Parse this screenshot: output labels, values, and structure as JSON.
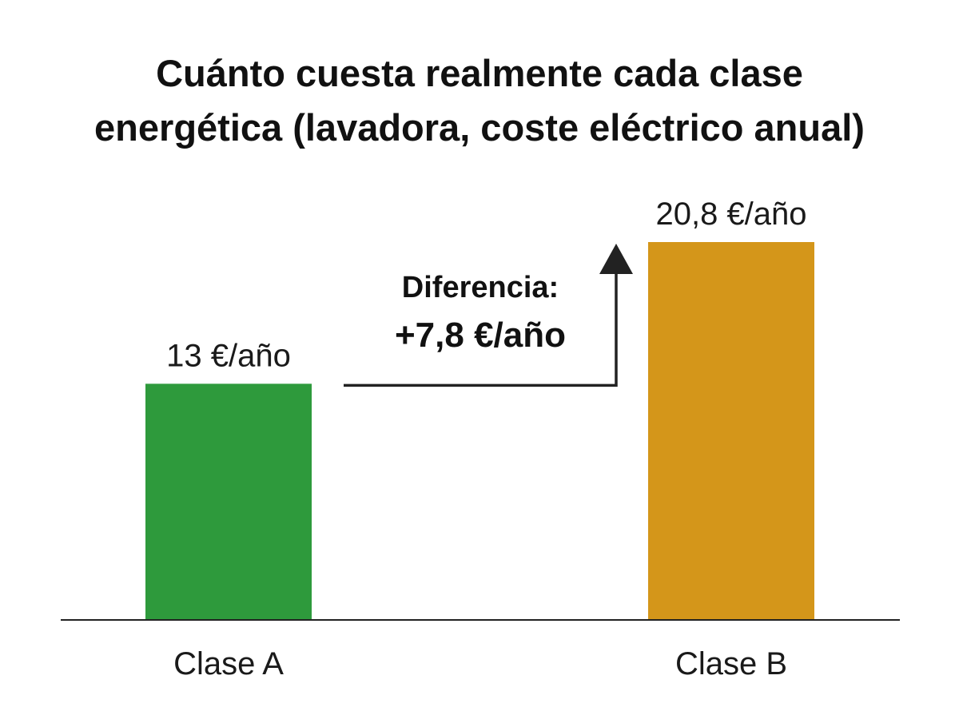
{
  "chart_data": {
    "type": "bar",
    "title_lines": [
      "Cuánto cuesta realmente cada clase",
      "energética (lavadora, coste eléctrico anual)"
    ],
    "categories": [
      "Clase A",
      "Clase B"
    ],
    "values": [
      13,
      20.8
    ],
    "value_labels": [
      "13 €/año",
      "20,8 €/año"
    ],
    "colors": [
      "#2e9a3c",
      "#d4961a"
    ],
    "ylim": [
      0,
      20.8
    ],
    "grid": false,
    "legend": "none",
    "annotation": {
      "label": "Diferencia:",
      "value": "+7,8 €/año",
      "from_category": "Clase A",
      "to_category": "Clase B"
    }
  }
}
